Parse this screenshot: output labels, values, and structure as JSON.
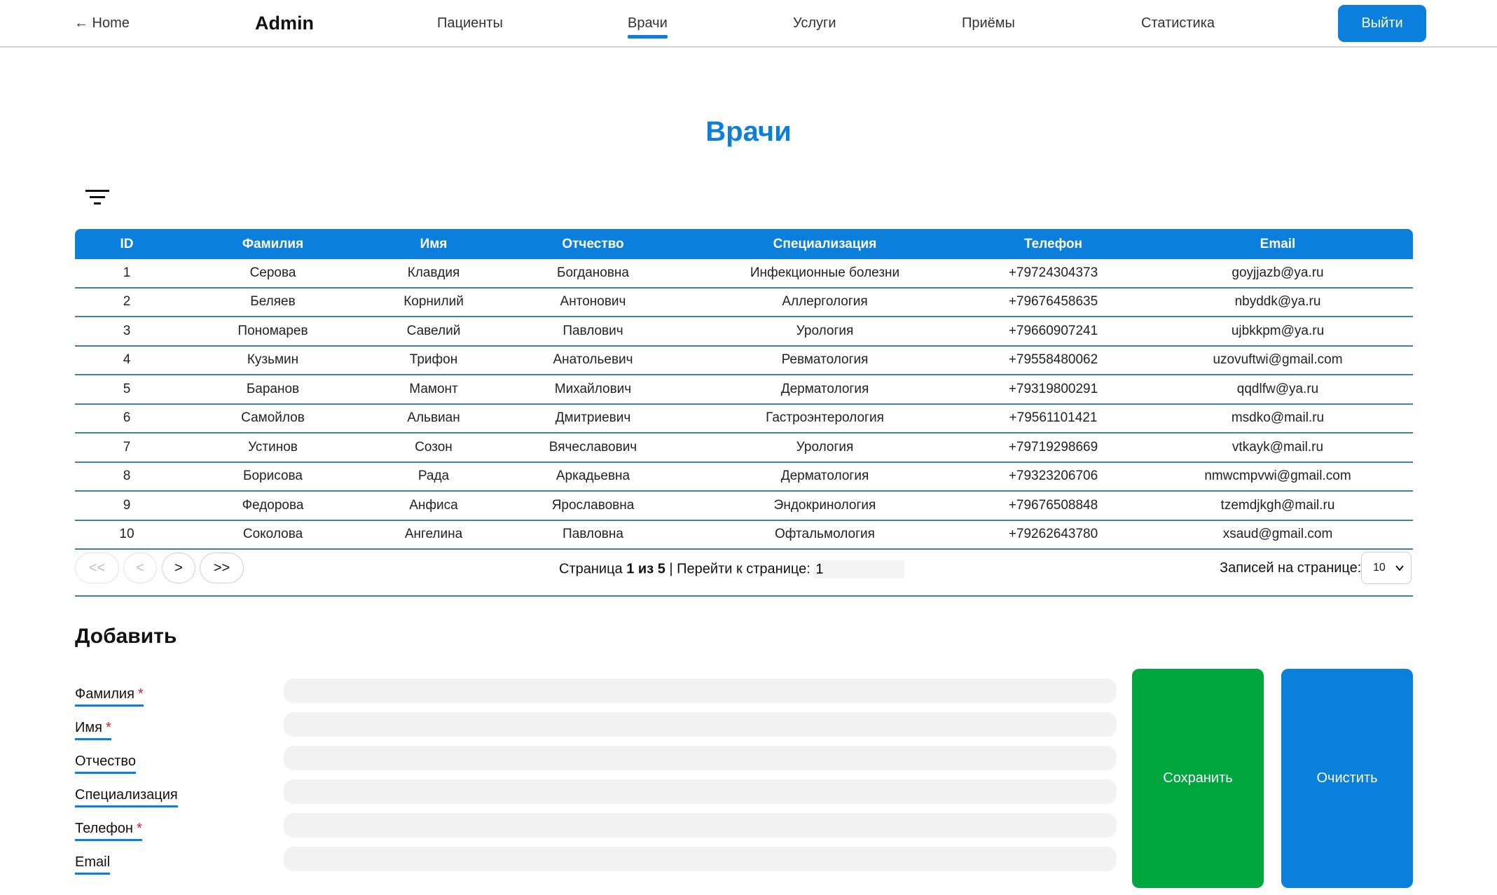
{
  "nav": {
    "home": "← Home",
    "brand": "Admin",
    "links": [
      "Пациенты",
      "Врачи",
      "Услуги",
      "Приёмы",
      "Статистика"
    ],
    "active": "Врачи",
    "logout": "Выйти"
  },
  "page": {
    "title": "Врачи"
  },
  "filter": {
    "icon": "filter-icon"
  },
  "table": {
    "headers": [
      "ID",
      "Фамилия",
      "Имя",
      "Отчество",
      "Специализация",
      "Телефон",
      "Email"
    ],
    "rows": [
      [
        "1",
        "Серова",
        "Клавдия",
        "Богдановна",
        "Инфекционные болезни",
        "+79724304373",
        "goyjjazb@ya.ru"
      ],
      [
        "2",
        "Беляев",
        "Корнилий",
        "Антонович",
        "Аллергология",
        "+79676458635",
        "nbyddk@ya.ru"
      ],
      [
        "3",
        "Пономарев",
        "Савелий",
        "Павлович",
        "Урология",
        "+79660907241",
        "ujbkkpm@ya.ru"
      ],
      [
        "4",
        "Кузьмин",
        "Трифон",
        "Анатольевич",
        "Ревматология",
        "+79558480062",
        "uzovuftwi@gmail.com"
      ],
      [
        "5",
        "Баранов",
        "Мамонт",
        "Михайлович",
        "Дерматология",
        "+79319800291",
        "qqdlfw@ya.ru"
      ],
      [
        "6",
        "Самойлов",
        "Альвиан",
        "Дмитриевич",
        "Гастроэнтерология",
        "+79561101421",
        "msdko@mail.ru"
      ],
      [
        "7",
        "Устинов",
        "Созон",
        "Вячеславович",
        "Урология",
        "+79719298669",
        "vtkayk@mail.ru"
      ],
      [
        "8",
        "Борисова",
        "Рада",
        "Аркадьевна",
        "Дерматология",
        "+79323206706",
        "nmwcmpvwi@gmail.com"
      ],
      [
        "9",
        "Федорова",
        "Анфиса",
        "Ярославовна",
        "Эндокринология",
        "+79676508848",
        "tzemdjkgh@mail.ru"
      ],
      [
        "10",
        "Соколова",
        "Ангелина",
        "Павловна",
        "Офтальмология",
        "+79262643780",
        "xsaud@gmail.com"
      ]
    ]
  },
  "pagination": {
    "first": "<<",
    "prev": "<",
    "next": ">",
    "last": ">>",
    "page_label": "Страница",
    "current": "1",
    "of": "из",
    "total": "5",
    "goto_label": "| Перейти к странице:",
    "goto_value": "1",
    "per_page_label": "Записей на странице:",
    "per_page": "10"
  },
  "form": {
    "title": "Добавить",
    "fields": [
      {
        "label": "Фамилия",
        "required": "*"
      },
      {
        "label": "Имя",
        "required": "*"
      },
      {
        "label": "Отчество",
        "required": ""
      },
      {
        "label": "Специализация",
        "required": ""
      },
      {
        "label": "Телефон",
        "required": "*"
      },
      {
        "label": "Email",
        "required": ""
      }
    ],
    "save": "Сохранить",
    "clear": "Очистить"
  },
  "colors": {
    "accent": "#0a80dc",
    "save_button": "#00a63e",
    "clear_button": "#0a80dc",
    "required": "#e0192b"
  }
}
